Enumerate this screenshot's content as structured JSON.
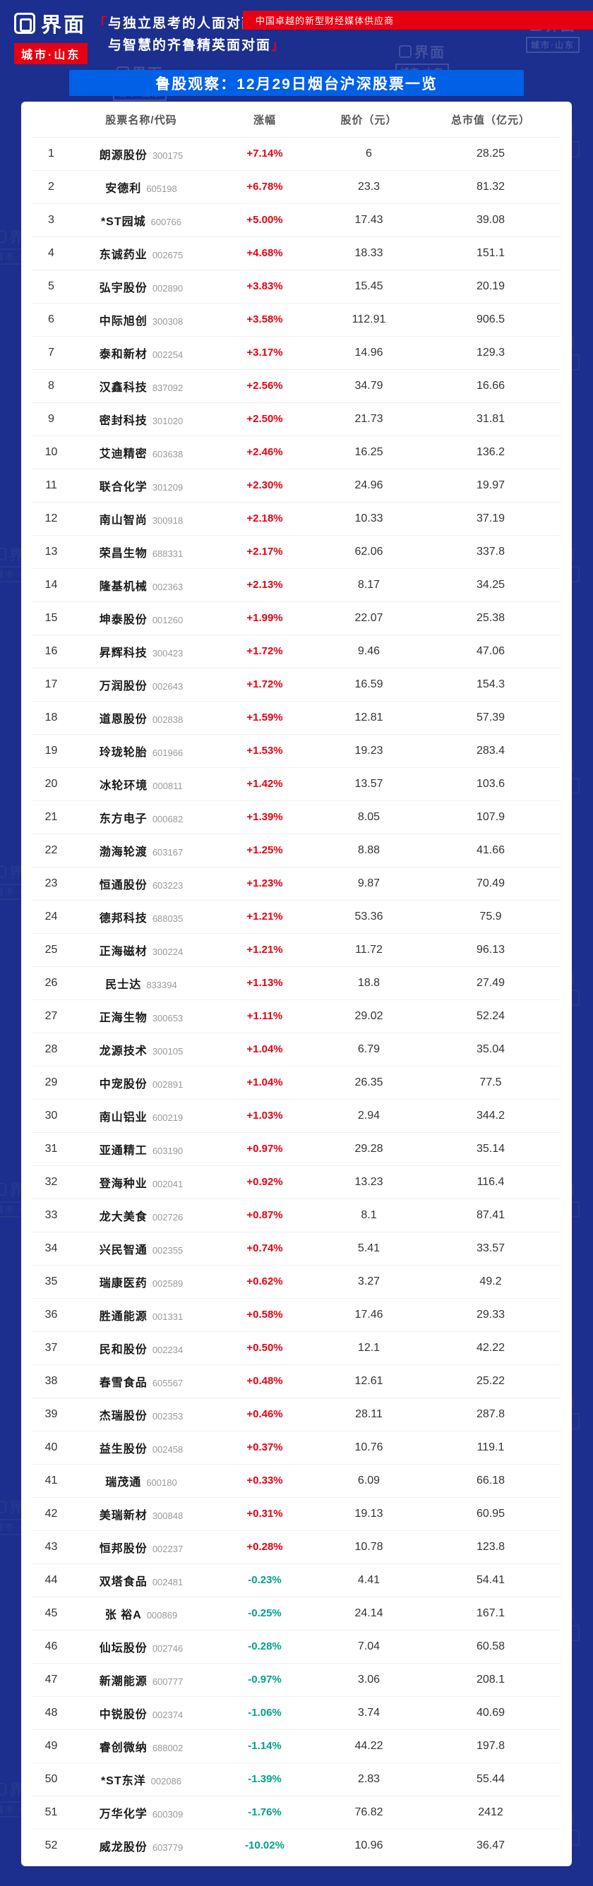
{
  "header": {
    "logo_text": "界面",
    "logo_sub": "城市·山东",
    "tagline_open": "「",
    "tagline_line1": "与独立思考的人面对面",
    "tagline_line2": "与智慧的齐鲁精英面对面",
    "tagline_close": "」",
    "slogan": "中国卓越的新型财经媒体供应商"
  },
  "banner": {
    "title": "鲁股观察：12月29日烟台沪深股票一览"
  },
  "watermark": {
    "line1": "界面",
    "line2": "城市·山东"
  },
  "colors": {
    "background": "#1c2e8e",
    "banner_blue": "#0060e6",
    "brand_red": "#e60012",
    "up_red": "#e60012",
    "down_green": "#00a287"
  },
  "table": {
    "headers": [
      "股票名称/代码",
      "涨幅",
      "股价（元）",
      "总市值（亿元）"
    ],
    "rows": [
      {
        "index": 1,
        "name": "朗源股份",
        "code": "300175",
        "change": "+7.14%",
        "price": "6",
        "cap": "28.25"
      },
      {
        "index": 2,
        "name": "安德利",
        "code": "605198",
        "change": "+6.78%",
        "price": "23.3",
        "cap": "81.32"
      },
      {
        "index": 3,
        "name": "*ST园城",
        "code": "600766",
        "change": "+5.00%",
        "price": "17.43",
        "cap": "39.08"
      },
      {
        "index": 4,
        "name": "东诚药业",
        "code": "002675",
        "change": "+4.68%",
        "price": "18.33",
        "cap": "151.1"
      },
      {
        "index": 5,
        "name": "弘宇股份",
        "code": "002890",
        "change": "+3.83%",
        "price": "15.45",
        "cap": "20.19"
      },
      {
        "index": 6,
        "name": "中际旭创",
        "code": "300308",
        "change": "+3.58%",
        "price": "112.91",
        "cap": "906.5"
      },
      {
        "index": 7,
        "name": "泰和新材",
        "code": "002254",
        "change": "+3.17%",
        "price": "14.96",
        "cap": "129.3"
      },
      {
        "index": 8,
        "name": "汉鑫科技",
        "code": "837092",
        "change": "+2.56%",
        "price": "34.79",
        "cap": "16.66"
      },
      {
        "index": 9,
        "name": "密封科技",
        "code": "301020",
        "change": "+2.50%",
        "price": "21.73",
        "cap": "31.81"
      },
      {
        "index": 10,
        "name": "艾迪精密",
        "code": "603638",
        "change": "+2.46%",
        "price": "16.25",
        "cap": "136.2"
      },
      {
        "index": 11,
        "name": "联合化学",
        "code": "301209",
        "change": "+2.30%",
        "price": "24.96",
        "cap": "19.97"
      },
      {
        "index": 12,
        "name": "南山智尚",
        "code": "300918",
        "change": "+2.18%",
        "price": "10.33",
        "cap": "37.19"
      },
      {
        "index": 13,
        "name": "荣昌生物",
        "code": "688331",
        "change": "+2.17%",
        "price": "62.06",
        "cap": "337.8"
      },
      {
        "index": 14,
        "name": "隆基机械",
        "code": "002363",
        "change": "+2.13%",
        "price": "8.17",
        "cap": "34.25"
      },
      {
        "index": 15,
        "name": "坤泰股份",
        "code": "001260",
        "change": "+1.99%",
        "price": "22.07",
        "cap": "25.38"
      },
      {
        "index": 16,
        "name": "昇辉科技",
        "code": "300423",
        "change": "+1.72%",
        "price": "9.46",
        "cap": "47.06"
      },
      {
        "index": 17,
        "name": "万润股份",
        "code": "002643",
        "change": "+1.72%",
        "price": "16.59",
        "cap": "154.3"
      },
      {
        "index": 18,
        "name": "道恩股份",
        "code": "002838",
        "change": "+1.59%",
        "price": "12.81",
        "cap": "57.39"
      },
      {
        "index": 19,
        "name": "玲珑轮胎",
        "code": "601966",
        "change": "+1.53%",
        "price": "19.23",
        "cap": "283.4"
      },
      {
        "index": 20,
        "name": "冰轮环境",
        "code": "000811",
        "change": "+1.42%",
        "price": "13.57",
        "cap": "103.6"
      },
      {
        "index": 21,
        "name": "东方电子",
        "code": "000682",
        "change": "+1.39%",
        "price": "8.05",
        "cap": "107.9"
      },
      {
        "index": 22,
        "name": "渤海轮渡",
        "code": "603167",
        "change": "+1.25%",
        "price": "8.88",
        "cap": "41.66"
      },
      {
        "index": 23,
        "name": "恒通股份",
        "code": "603223",
        "change": "+1.23%",
        "price": "9.87",
        "cap": "70.49"
      },
      {
        "index": 24,
        "name": "德邦科技",
        "code": "688035",
        "change": "+1.21%",
        "price": "53.36",
        "cap": "75.9"
      },
      {
        "index": 25,
        "name": "正海磁材",
        "code": "300224",
        "change": "+1.21%",
        "price": "11.72",
        "cap": "96.13"
      },
      {
        "index": 26,
        "name": "民士达",
        "code": "833394",
        "change": "+1.13%",
        "price": "18.8",
        "cap": "27.49"
      },
      {
        "index": 27,
        "name": "正海生物",
        "code": "300653",
        "change": "+1.11%",
        "price": "29.02",
        "cap": "52.24"
      },
      {
        "index": 28,
        "name": "龙源技术",
        "code": "300105",
        "change": "+1.04%",
        "price": "6.79",
        "cap": "35.04"
      },
      {
        "index": 29,
        "name": "中宠股份",
        "code": "002891",
        "change": "+1.04%",
        "price": "26.35",
        "cap": "77.5"
      },
      {
        "index": 30,
        "name": "南山铝业",
        "code": "600219",
        "change": "+1.03%",
        "price": "2.94",
        "cap": "344.2"
      },
      {
        "index": 31,
        "name": "亚通精工",
        "code": "603190",
        "change": "+0.97%",
        "price": "29.28",
        "cap": "35.14"
      },
      {
        "index": 32,
        "name": "登海种业",
        "code": "002041",
        "change": "+0.92%",
        "price": "13.23",
        "cap": "116.4"
      },
      {
        "index": 33,
        "name": "龙大美食",
        "code": "002726",
        "change": "+0.87%",
        "price": "8.1",
        "cap": "87.41"
      },
      {
        "index": 34,
        "name": "兴民智通",
        "code": "002355",
        "change": "+0.74%",
        "price": "5.41",
        "cap": "33.57"
      },
      {
        "index": 35,
        "name": "瑞康医药",
        "code": "002589",
        "change": "+0.62%",
        "price": "3.27",
        "cap": "49.2"
      },
      {
        "index": 36,
        "name": "胜通能源",
        "code": "001331",
        "change": "+0.58%",
        "price": "17.46",
        "cap": "29.33"
      },
      {
        "index": 37,
        "name": "民和股份",
        "code": "002234",
        "change": "+0.50%",
        "price": "12.1",
        "cap": "42.22"
      },
      {
        "index": 38,
        "name": "春雪食品",
        "code": "605567",
        "change": "+0.48%",
        "price": "12.61",
        "cap": "25.22"
      },
      {
        "index": 39,
        "name": "杰瑞股份",
        "code": "002353",
        "change": "+0.46%",
        "price": "28.11",
        "cap": "287.8"
      },
      {
        "index": 40,
        "name": "益生股份",
        "code": "002458",
        "change": "+0.37%",
        "price": "10.76",
        "cap": "119.1"
      },
      {
        "index": 41,
        "name": "瑞茂通",
        "code": "600180",
        "change": "+0.33%",
        "price": "6.09",
        "cap": "66.18"
      },
      {
        "index": 42,
        "name": "美瑞新材",
        "code": "300848",
        "change": "+0.31%",
        "price": "19.13",
        "cap": "60.95"
      },
      {
        "index": 43,
        "name": "恒邦股份",
        "code": "002237",
        "change": "+0.28%",
        "price": "10.78",
        "cap": "123.8"
      },
      {
        "index": 44,
        "name": "双塔食品",
        "code": "002481",
        "change": "-0.23%",
        "price": "4.41",
        "cap": "54.41"
      },
      {
        "index": 45,
        "name": "张 裕A",
        "code": "000869",
        "change": "-0.25%",
        "price": "24.14",
        "cap": "167.1"
      },
      {
        "index": 46,
        "name": "仙坛股份",
        "code": "002746",
        "change": "-0.28%",
        "price": "7.04",
        "cap": "60.58"
      },
      {
        "index": 47,
        "name": "新潮能源",
        "code": "600777",
        "change": "-0.97%",
        "price": "3.06",
        "cap": "208.1"
      },
      {
        "index": 48,
        "name": "中锐股份",
        "code": "002374",
        "change": "-1.06%",
        "price": "3.74",
        "cap": "40.69"
      },
      {
        "index": 49,
        "name": "睿创微纳",
        "code": "688002",
        "change": "-1.14%",
        "price": "44.22",
        "cap": "197.8"
      },
      {
        "index": 50,
        "name": "*ST东洋",
        "code": "002086",
        "change": "-1.39%",
        "price": "2.83",
        "cap": "55.44"
      },
      {
        "index": 51,
        "name": "万华化学",
        "code": "600309",
        "change": "-1.76%",
        "price": "76.82",
        "cap": "2412"
      },
      {
        "index": 52,
        "name": "威龙股份",
        "code": "603779",
        "change": "-10.02%",
        "price": "10.96",
        "cap": "36.47"
      }
    ]
  }
}
